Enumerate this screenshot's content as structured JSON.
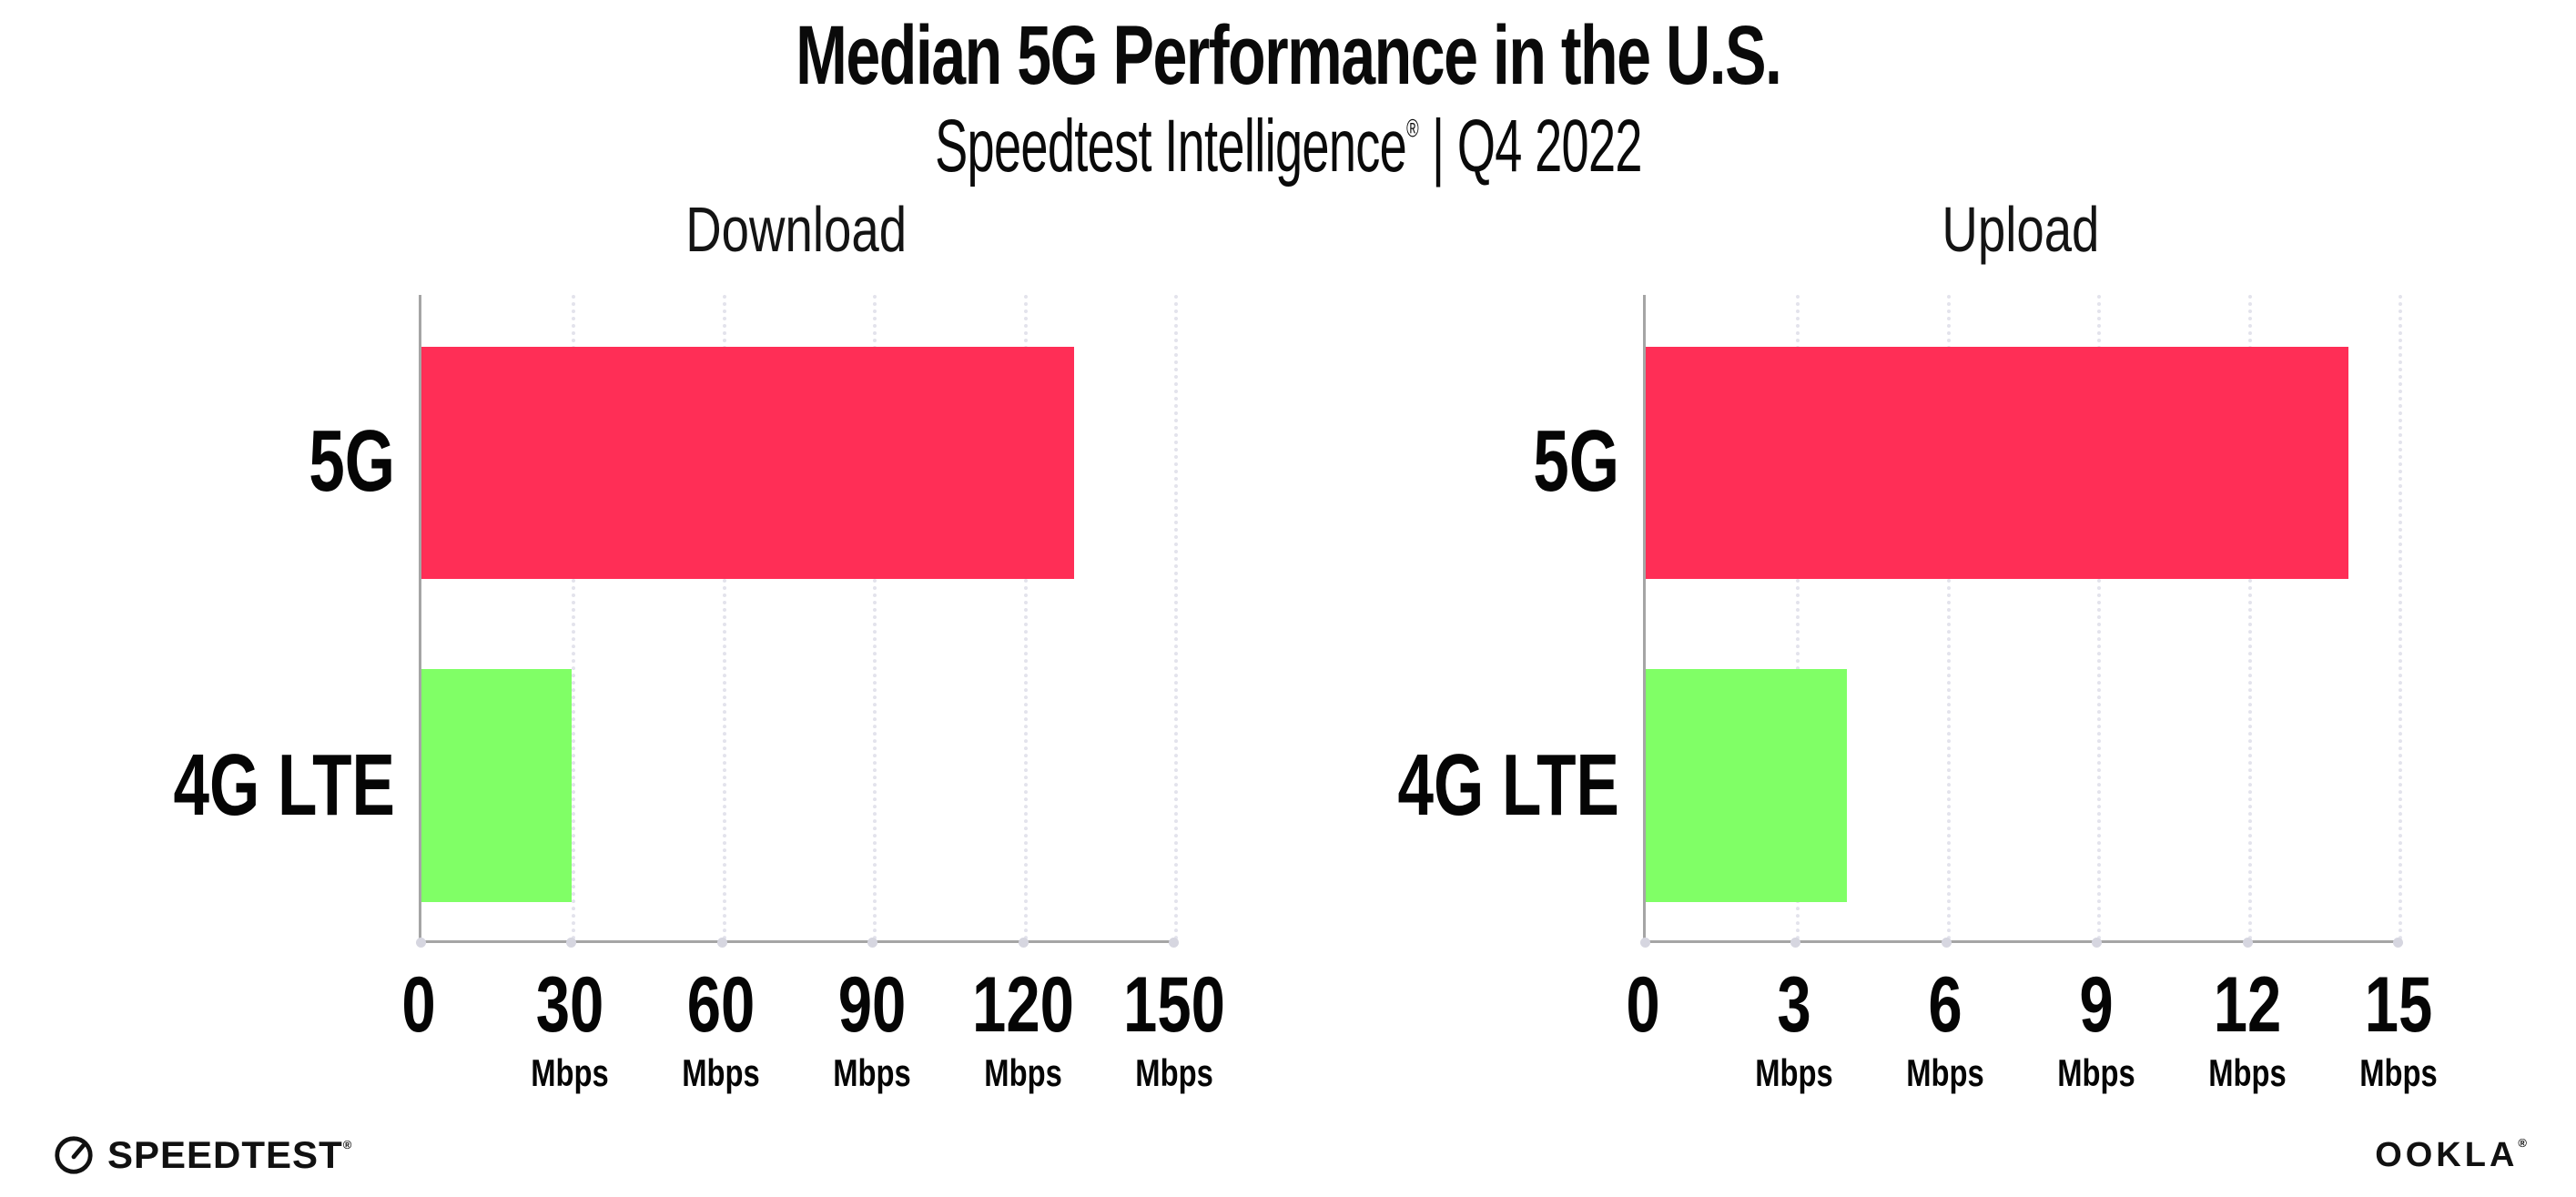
{
  "header": {
    "title": "Median 5G Performance in the U.S.",
    "subtitle_brand": "Speedtest Intelligence",
    "subtitle_reg": "®",
    "subtitle_rest": " | Q4 2022"
  },
  "colors": {
    "bar_5g": "#ff2e56",
    "bar_4g_lte": "#80ff66",
    "grid": "#e3e3ec",
    "grid_dot": "#d6d6e0",
    "axis": "#a5a5a5",
    "text": "#050505"
  },
  "chart_data": [
    {
      "type": "bar",
      "orientation": "horizontal",
      "title": "Download",
      "categories": [
        "5G",
        "4G LTE"
      ],
      "values": [
        130,
        30
      ],
      "unit": "Mbps",
      "tick_unit": "Mbps",
      "xlim": [
        0,
        150
      ],
      "xticks": [
        0,
        30,
        60,
        90,
        120,
        150
      ],
      "bar_colors": [
        "#ff2e56",
        "#80ff66"
      ],
      "grid": "vertical-dotted",
      "legend": "none"
    },
    {
      "type": "bar",
      "orientation": "horizontal",
      "title": "Upload",
      "categories": [
        "5G",
        "4G LTE"
      ],
      "values": [
        14,
        4
      ],
      "unit": "Mbps",
      "tick_unit": "Mbps",
      "xlim": [
        0,
        15
      ],
      "xticks": [
        0,
        3,
        6,
        9,
        12,
        15
      ],
      "bar_colors": [
        "#ff2e56",
        "#80ff66"
      ],
      "grid": "vertical-dotted",
      "legend": "none"
    }
  ],
  "footer": {
    "speedtest_label": "SPEEDTEST",
    "speedtest_reg": "®",
    "ookla_label": "OOKLA",
    "ookla_reg": "®"
  }
}
